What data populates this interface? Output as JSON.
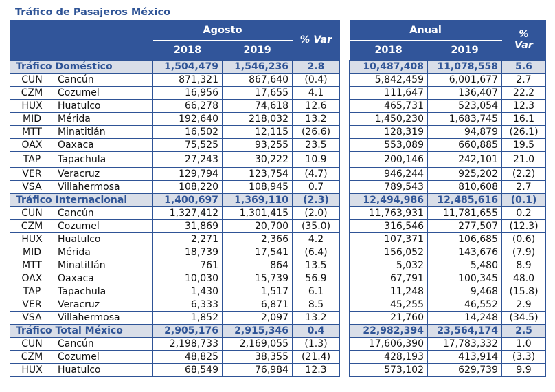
{
  "title": "Tráfico de Pasajeros México",
  "header": {
    "agosto": "Agosto",
    "anual": "Anual",
    "year1": "2018",
    "year2": "2019",
    "var": "% Var",
    "var_pct": "%",
    "var_word": "Var"
  },
  "colors": {
    "header_bg": "#31559a",
    "section_bg": "#d9dee8",
    "section_text": "#2f5496"
  },
  "sections": [
    {
      "name": "Tráfico Doméstico",
      "agosto": [
        "1,504,479",
        "1,546,236",
        "2.8"
      ],
      "anual": [
        "10,487,408",
        "11,078,558",
        "5.6"
      ],
      "rows": [
        {
          "code": "CUN",
          "name": "Cancún",
          "agosto": [
            "871,321",
            "867,640",
            "(0.4)"
          ],
          "anual": [
            "5,842,459",
            "6,001,677",
            "2.7"
          ]
        },
        {
          "code": "CZM",
          "name": "Cozumel",
          "agosto": [
            "16,956",
            "17,655",
            "4.1"
          ],
          "anual": [
            "111,647",
            "136,407",
            "22.2"
          ]
        },
        {
          "code": "HUX",
          "name": "Huatulco",
          "agosto": [
            "66,278",
            "74,618",
            "12.6"
          ],
          "anual": [
            "465,731",
            "523,054",
            "12.3"
          ]
        },
        {
          "code": "MID",
          "name": "Mérida",
          "agosto": [
            "192,640",
            "218,032",
            "13.2"
          ],
          "anual": [
            "1,450,230",
            "1,683,745",
            "16.1"
          ]
        },
        {
          "code": "MTT",
          "name": "Minatitlán",
          "agosto": [
            "16,502",
            "12,115",
            "(26.6)"
          ],
          "anual": [
            "128,319",
            "94,879",
            "(26.1)"
          ]
        },
        {
          "code": "OAX",
          "name": "Oaxaca",
          "agosto": [
            "75,525",
            "93,255",
            "23.5"
          ],
          "anual": [
            "553,089",
            "660,885",
            "19.5"
          ]
        },
        {
          "code": "TAP",
          "name": "Tapachula",
          "agosto": [
            "27,243",
            "30,222",
            "10.9"
          ],
          "anual": [
            "200,146",
            "242,101",
            "21.0"
          ]
        },
        {
          "code": "VER",
          "name": "Veracruz",
          "agosto": [
            "129,794",
            "123,754",
            "(4.7)"
          ],
          "anual": [
            "946,244",
            "925,202",
            "(2.2)"
          ]
        },
        {
          "code": "VSA",
          "name": "Villahermosa",
          "agosto": [
            "108,220",
            "108,945",
            "0.7"
          ],
          "anual": [
            "789,543",
            "810,608",
            "2.7"
          ]
        }
      ]
    },
    {
      "name": "Tráfico Internacional",
      "agosto": [
        "1,400,697",
        "1,369,110",
        "(2.3)"
      ],
      "anual": [
        "12,494,986",
        "12,485,616",
        "(0.1)"
      ],
      "rows": [
        {
          "code": "CUN",
          "name": "Cancún",
          "agosto": [
            "1,327,412",
            "1,301,415",
            "(2.0)"
          ],
          "anual": [
            "11,763,931",
            "11,781,655",
            "0.2"
          ]
        },
        {
          "code": "CZM",
          "name": "Cozumel",
          "agosto": [
            "31,869",
            "20,700",
            "(35.0)"
          ],
          "anual": [
            "316,546",
            "277,507",
            "(12.3)"
          ]
        },
        {
          "code": "HUX",
          "name": "Huatulco",
          "agosto": [
            "2,271",
            "2,366",
            "4.2"
          ],
          "anual": [
            "107,371",
            "106,685",
            "(0.6)"
          ]
        },
        {
          "code": "MID",
          "name": "Mérida",
          "agosto": [
            "18,739",
            "17,541",
            "(6.4)"
          ],
          "anual": [
            "156,052",
            "143,676",
            "(7.9)"
          ]
        },
        {
          "code": "MTT",
          "name": "Minatitlán",
          "agosto": [
            "761",
            "864",
            "13.5"
          ],
          "anual": [
            "5,032",
            "5,480",
            "8.9"
          ]
        },
        {
          "code": "OAX",
          "name": "Oaxaca",
          "agosto": [
            "10,030",
            "15,739",
            "56.9"
          ],
          "anual": [
            "67,791",
            "100,345",
            "48.0"
          ]
        },
        {
          "code": "TAP",
          "name": "Tapachula",
          "agosto": [
            "1,430",
            "1,517",
            "6.1"
          ],
          "anual": [
            "11,248",
            "9,468",
            "(15.8)"
          ]
        },
        {
          "code": "VER",
          "name": "Veracruz",
          "agosto": [
            "6,333",
            "6,871",
            "8.5"
          ],
          "anual": [
            "45,255",
            "46,552",
            "2.9"
          ]
        },
        {
          "code": "VSA",
          "name": "Villahermosa",
          "agosto": [
            "1,852",
            "2,097",
            "13.2"
          ],
          "anual": [
            "21,760",
            "14,248",
            "(34.5)"
          ]
        }
      ]
    },
    {
      "name": "Tráfico Total México",
      "agosto": [
        "2,905,176",
        "2,915,346",
        "0.4"
      ],
      "anual": [
        "22,982,394",
        "23,564,174",
        "2.5"
      ],
      "rows": [
        {
          "code": "CUN",
          "name": "Cancún",
          "agosto": [
            "2,198,733",
            "2,169,055",
            "(1.3)"
          ],
          "anual": [
            "17,606,390",
            "17,783,332",
            "1.0"
          ]
        },
        {
          "code": "CZM",
          "name": "Cozumel",
          "agosto": [
            "48,825",
            "38,355",
            "(21.4)"
          ],
          "anual": [
            "428,193",
            "413,914",
            "(3.3)"
          ]
        },
        {
          "code": "HUX",
          "name": "Huatulco",
          "agosto": [
            "68,549",
            "76,984",
            "12.3"
          ],
          "anual": [
            "573,102",
            "629,739",
            "9.9"
          ]
        }
      ]
    }
  ]
}
